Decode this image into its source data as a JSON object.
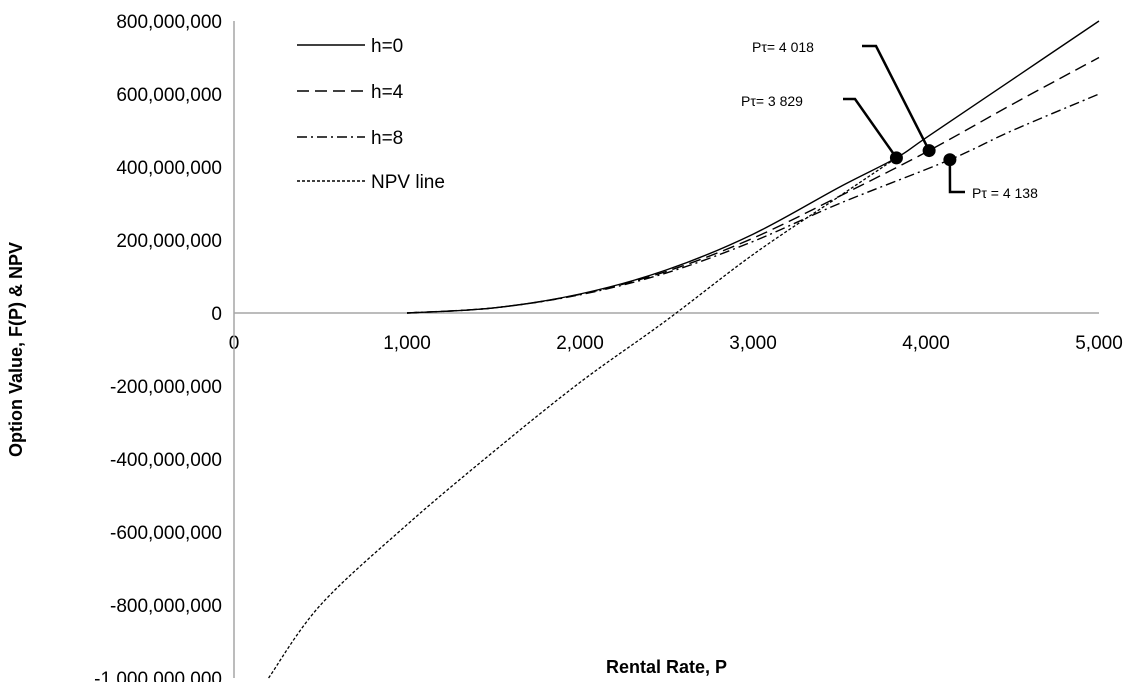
{
  "chart_data": {
    "type": "line",
    "xlabel": "Rental Rate, P",
    "ylabel": "Option Value, F(P) & NPV",
    "xlim": [
      0,
      5000
    ],
    "ylim": [
      -1000000000,
      800000000
    ],
    "x_ticks": [
      0,
      1000,
      2000,
      3000,
      4000,
      5000
    ],
    "x_tick_labels": [
      "0",
      "1,000",
      "2,000",
      "3,000",
      "4,000",
      "5,000"
    ],
    "y_ticks": [
      800000000,
      600000000,
      400000000,
      200000000,
      0,
      -200000000,
      -400000000,
      -600000000,
      -800000000,
      -1000000000
    ],
    "y_tick_labels": [
      "800,000,000",
      "600,000,000",
      "400,000,000",
      "200,000,000",
      "0",
      "-200,000,000",
      "-400,000,000",
      "-600,000,000",
      "-800,000,000",
      "-1,000,000,000"
    ],
    "grid": false,
    "legend_position": "top-left",
    "series": [
      {
        "name": "h=0",
        "style": "solid",
        "x": [
          1000,
          1500,
          2000,
          2500,
          3000,
          3500,
          3829,
          4000,
          4500,
          5000
        ],
        "y": [
          0,
          14000000,
          52000000,
          118000000,
          216000000,
          345000000,
          425000000,
          480000000,
          640000000,
          800000000
        ]
      },
      {
        "name": "h=4",
        "style": "dashed",
        "x": [
          1000,
          1500,
          2000,
          2500,
          3000,
          3500,
          4018,
          4500,
          5000
        ],
        "y": [
          0,
          14000000,
          51000000,
          114000000,
          205000000,
          320000000,
          445000000,
          572000000,
          700000000
        ]
      },
      {
        "name": "h=8",
        "style": "dashdot",
        "x": [
          1000,
          1500,
          2000,
          2500,
          3000,
          3500,
          4138,
          4500,
          5000
        ],
        "y": [
          0,
          14000000,
          50000000,
          110000000,
          196000000,
          300000000,
          420000000,
          500000000,
          600000000
        ]
      },
      {
        "name": "NPV line",
        "style": "dotted",
        "x": [
          200,
          500,
          1000,
          1500,
          2000,
          2500,
          3000,
          3500,
          3829
        ],
        "y": [
          -1000000000,
          -800000000,
          -580000000,
          -380000000,
          -190000000,
          -20000000,
          160000000,
          320000000,
          425000000
        ]
      }
    ],
    "markers": [
      {
        "x": 3829,
        "y": 425000000,
        "label": "Pτ= 3 829"
      },
      {
        "x": 4018,
        "y": 445000000,
        "label": "Pτ=  4 018"
      },
      {
        "x": 4138,
        "y": 420000000,
        "label": "Pτ = 4 138"
      }
    ]
  }
}
